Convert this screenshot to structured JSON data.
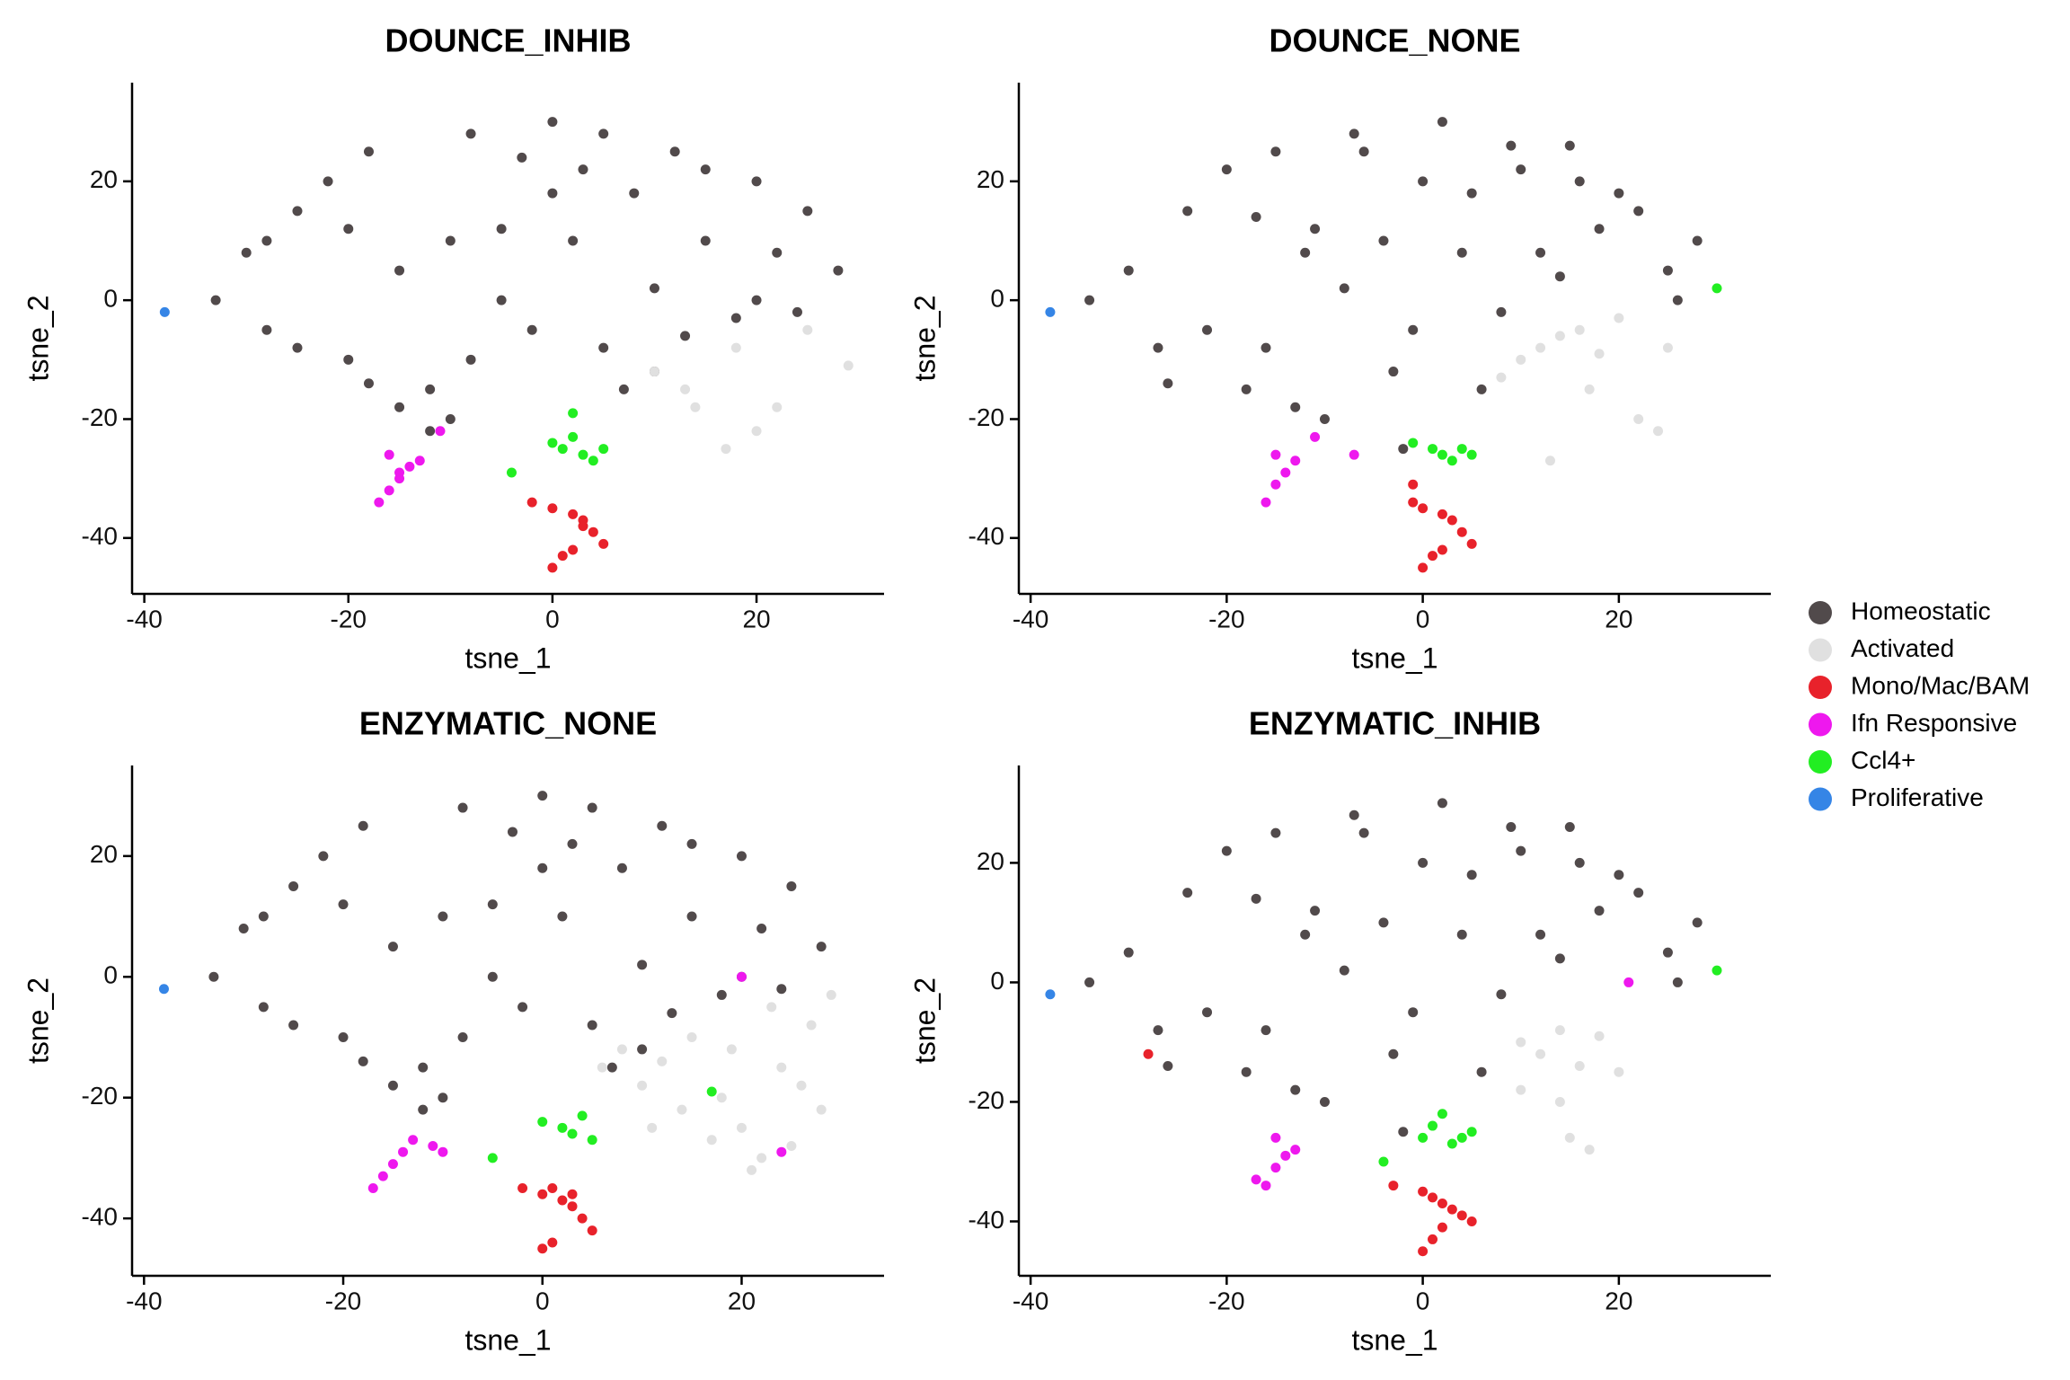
{
  "legend": [
    {
      "name": "Homeostatic",
      "color": "#514a4b"
    },
    {
      "name": "Activated",
      "color": "#e0e0e0"
    },
    {
      "name": "Mono/Mac/BAM",
      "color": "#e8222b"
    },
    {
      "name": "Ifn Responsive",
      "color": "#ee18ee"
    },
    {
      "name": "Ccl4+",
      "color": "#22ee22"
    },
    {
      "name": "Proliferative",
      "color": "#3585e6"
    }
  ],
  "chart_data": [
    {
      "type": "scatter",
      "title": "DOUNCE_INHIB",
      "xlabel": "tsne_1",
      "ylabel": "tsne_2",
      "xlim": [
        -41.2,
        32.5
      ],
      "ylim": [
        -49.4,
        36.6
      ],
      "xticks": [
        -40,
        -20,
        0,
        20
      ],
      "yticks": [
        -40,
        -20,
        0,
        20
      ],
      "series": [
        {
          "x": [
            -33,
            -30,
            -28,
            -25,
            -22,
            -20,
            -18,
            -15,
            -12,
            -10,
            -8,
            -5,
            -2,
            0,
            3,
            5,
            8,
            10,
            12,
            15,
            18,
            20,
            22,
            25,
            28,
            -25,
            -20,
            -15,
            -10,
            -5,
            0,
            5,
            10,
            15,
            20,
            -12,
            -8,
            -3,
            2,
            7,
            -18,
            -28,
            13,
            24
          ],
          "y": [
            0,
            8,
            -5,
            15,
            20,
            -10,
            25,
            5,
            -15,
            -20,
            28,
            12,
            -5,
            30,
            22,
            -8,
            18,
            2,
            25,
            10,
            -3,
            20,
            8,
            15,
            5,
            -8,
            12,
            -18,
            10,
            0,
            18,
            28,
            -12,
            22,
            0,
            -22,
            -10,
            24,
            10,
            -15,
            -14,
            10,
            -6,
            -2
          ]
        },
        {
          "x": [
            10,
            14,
            18,
            20,
            25,
            29,
            13,
            17,
            22
          ],
          "y": [
            -12,
            -18,
            -8,
            -22,
            -5,
            -11,
            -15,
            -25,
            -18
          ]
        },
        {
          "x": [
            -2,
            0,
            2,
            3,
            4,
            5,
            1,
            0,
            2,
            3
          ],
          "y": [
            -34,
            -35,
            -36,
            -37,
            -39,
            -41,
            -43,
            -45,
            -42,
            -38
          ]
        },
        {
          "x": [
            -17,
            -16,
            -15,
            -14,
            -13,
            -16,
            -15,
            -11
          ],
          "y": [
            -34,
            -32,
            -30,
            -28,
            -27,
            -26,
            -29,
            -22
          ]
        },
        {
          "x": [
            0,
            1,
            2,
            3,
            4,
            5,
            -4,
            2
          ],
          "y": [
            -24,
            -25,
            -23,
            -26,
            -27,
            -25,
            -29,
            -19
          ]
        },
        {
          "x": [
            -38
          ],
          "y": [
            -2
          ]
        }
      ]
    },
    {
      "type": "scatter",
      "title": "DOUNCE_NONE",
      "xlabel": "tsne_1",
      "ylabel": "tsne_2",
      "xlim": [
        -41.2,
        35.5
      ],
      "ylim": [
        -49.4,
        36.6
      ],
      "xticks": [
        -40,
        -20,
        0,
        20
      ],
      "yticks": [
        -40,
        -20,
        0,
        20
      ],
      "series": [
        {
          "x": [
            -34,
            -30,
            -27,
            -24,
            -20,
            -18,
            -15,
            -12,
            -10,
            -7,
            -4,
            -1,
            2,
            5,
            8,
            10,
            12,
            15,
            18,
            22,
            25,
            28,
            -22,
            -17,
            -13,
            -8,
            -3,
            0,
            4,
            9,
            14,
            20,
            -26,
            -16,
            -6,
            6,
            16,
            26,
            -11,
            -2
          ],
          "y": [
            0,
            5,
            -8,
            15,
            22,
            -15,
            25,
            8,
            -20,
            28,
            10,
            -5,
            30,
            18,
            -2,
            22,
            8,
            26,
            12,
            15,
            5,
            10,
            -5,
            14,
            -18,
            2,
            -12,
            20,
            8,
            26,
            4,
            18,
            -14,
            -8,
            25,
            -15,
            20,
            0,
            12,
            -25
          ]
        },
        {
          "x": [
            8,
            10,
            12,
            14,
            16,
            18,
            20,
            25,
            13,
            17,
            22,
            24
          ],
          "y": [
            -13,
            -10,
            -8,
            -6,
            -5,
            -9,
            -3,
            -8,
            -27,
            -15,
            -20,
            -22
          ]
        },
        {
          "x": [
            -1,
            0,
            2,
            3,
            4,
            5,
            1,
            0,
            2,
            -1
          ],
          "y": [
            -34,
            -35,
            -36,
            -37,
            -39,
            -41,
            -43,
            -45,
            -42,
            -31
          ]
        },
        {
          "x": [
            -16,
            -15,
            -14,
            -13,
            -15,
            -11,
            -7
          ],
          "y": [
            -34,
            -31,
            -29,
            -27,
            -26,
            -23,
            -26
          ]
        },
        {
          "x": [
            -1,
            1,
            2,
            3,
            4,
            5,
            30
          ],
          "y": [
            -24,
            -25,
            -26,
            -27,
            -25,
            -26,
            2
          ]
        },
        {
          "x": [
            -38
          ],
          "y": [
            -2
          ]
        }
      ]
    },
    {
      "type": "scatter",
      "title": "ENZYMATIC_NONE",
      "xlabel": "tsne_1",
      "ylabel": "tsne_2",
      "xlim": [
        -41.2,
        34.3
      ],
      "ylim": [
        -49.5,
        35
      ],
      "xticks": [
        -40,
        -20,
        0,
        20
      ],
      "yticks": [
        -40,
        -20,
        0,
        20
      ],
      "series": [
        {
          "x": [
            -33,
            -30,
            -28,
            -25,
            -22,
            -20,
            -18,
            -15,
            -12,
            -10,
            -8,
            -5,
            -2,
            0,
            3,
            5,
            8,
            10,
            12,
            15,
            18,
            20,
            22,
            25,
            28,
            -25,
            -20,
            -15,
            -10,
            -5,
            0,
            5,
            10,
            15,
            20,
            -12,
            -8,
            -3,
            2,
            7,
            -18,
            -28,
            13,
            24
          ],
          "y": [
            0,
            8,
            -5,
            15,
            20,
            -10,
            25,
            5,
            -15,
            -20,
            28,
            12,
            -5,
            30,
            22,
            -8,
            18,
            2,
            25,
            10,
            -3,
            20,
            8,
            15,
            5,
            -8,
            12,
            -18,
            10,
            0,
            18,
            28,
            -12,
            22,
            0,
            -22,
            -10,
            24,
            10,
            -15,
            -14,
            10,
            -6,
            -2
          ]
        },
        {
          "x": [
            6,
            8,
            10,
            12,
            15,
            18,
            20,
            22,
            25,
            28,
            14,
            17,
            21,
            24,
            27,
            19,
            23,
            26,
            11,
            29
          ],
          "y": [
            -15,
            -12,
            -18,
            -14,
            -10,
            -20,
            -25,
            -30,
            -28,
            -22,
            -22,
            -27,
            -32,
            -15,
            -8,
            -12,
            -5,
            -18,
            -25,
            -3
          ]
        },
        {
          "x": [
            -2,
            0,
            1,
            2,
            3,
            4,
            5,
            0,
            1,
            3
          ],
          "y": [
            -35,
            -36,
            -35,
            -37,
            -38,
            -40,
            -42,
            -45,
            -44,
            -36
          ]
        },
        {
          "x": [
            -17,
            -16,
            -15,
            -14,
            -13,
            -11,
            -10,
            20,
            24
          ],
          "y": [
            -35,
            -33,
            -31,
            -29,
            -27,
            -28,
            -29,
            0,
            -29
          ]
        },
        {
          "x": [
            0,
            2,
            3,
            4,
            5,
            -5,
            17
          ],
          "y": [
            -24,
            -25,
            -26,
            -23,
            -27,
            -30,
            -19
          ]
        },
        {
          "x": [
            -38
          ],
          "y": [
            -2
          ]
        }
      ]
    },
    {
      "type": "scatter",
      "title": "ENZYMATIC_INHIB",
      "xlabel": "tsne_1",
      "ylabel": "tsne_2",
      "xlim": [
        -41.2,
        35.5
      ],
      "ylim": [
        -49.1,
        36.3
      ],
      "xticks": [
        -40,
        -20,
        0,
        20
      ],
      "yticks": [
        -40,
        -20,
        0,
        20
      ],
      "series": [
        {
          "x": [
            -34,
            -30,
            -27,
            -24,
            -20,
            -18,
            -15,
            -12,
            -10,
            -7,
            -4,
            -1,
            2,
            5,
            8,
            10,
            12,
            15,
            18,
            22,
            25,
            28,
            -22,
            -17,
            -13,
            -8,
            -3,
            0,
            4,
            9,
            14,
            20,
            -26,
            -16,
            -6,
            6,
            16,
            26,
            -11,
            -2
          ],
          "y": [
            0,
            5,
            -8,
            15,
            22,
            -15,
            25,
            8,
            -20,
            28,
            10,
            -5,
            30,
            18,
            -2,
            22,
            8,
            26,
            12,
            15,
            5,
            10,
            -5,
            14,
            -18,
            2,
            -12,
            20,
            8,
            26,
            4,
            18,
            -14,
            -8,
            25,
            -15,
            20,
            0,
            12,
            -25
          ]
        },
        {
          "x": [
            10,
            12,
            14,
            16,
            18,
            14,
            15,
            10,
            20,
            17
          ],
          "y": [
            -10,
            -12,
            -8,
            -14,
            -9,
            -20,
            -26,
            -18,
            -15,
            -28
          ]
        },
        {
          "x": [
            -3,
            0,
            1,
            2,
            3,
            4,
            5,
            1,
            0,
            2,
            -28
          ],
          "y": [
            -34,
            -35,
            -36,
            -37,
            -38,
            -39,
            -40,
            -43,
            -45,
            -41,
            -12
          ]
        },
        {
          "x": [
            -16,
            -15,
            -14,
            -13,
            -15,
            -17,
            21
          ],
          "y": [
            -34,
            -31,
            -29,
            -28,
            -26,
            -33,
            0
          ]
        },
        {
          "x": [
            -4,
            0,
            1,
            2,
            3,
            4,
            5,
            30
          ],
          "y": [
            -30,
            -26,
            -24,
            -22,
            -27,
            -26,
            -25,
            2
          ]
        },
        {
          "x": [
            -38
          ],
          "y": [
            -2
          ]
        }
      ]
    }
  ]
}
